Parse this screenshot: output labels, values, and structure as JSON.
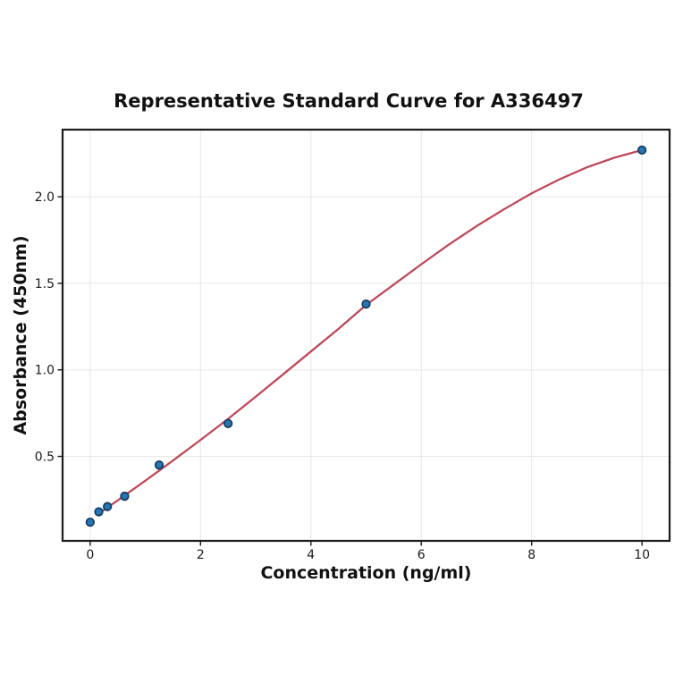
{
  "figure": {
    "background": "#ffffff"
  },
  "chart_data": {
    "type": "scatter",
    "title": "Representative Standard Curve for A336497",
    "xlabel": "Concentration (ng/ml)",
    "ylabel": "Absorbance (450nm)",
    "xlim": [
      -0.5,
      10.5
    ],
    "ylim": [
      0.012,
      2.388
    ],
    "xticks": [
      0,
      2,
      4,
      6,
      8,
      10
    ],
    "xtick_labels": [
      "0",
      "2",
      "4",
      "6",
      "8",
      "10"
    ],
    "yticks": [
      0.5,
      1.0,
      1.5,
      2.0
    ],
    "ytick_labels": [
      "0.5",
      "1.0",
      "1.5",
      "2.0"
    ],
    "grid": true,
    "legend": "none",
    "series": [
      {
        "name": "standard-points",
        "type": "scatter",
        "x": [
          0,
          0.156,
          0.3125,
          0.625,
          1.25,
          2.5,
          5,
          10
        ],
        "y": [
          0.12,
          0.18,
          0.21,
          0.27,
          0.45,
          0.69,
          1.38,
          2.27
        ]
      },
      {
        "name": "fit-curve",
        "type": "line",
        "x": [
          0.156,
          0.5,
          1.0,
          1.5,
          2.0,
          2.5,
          3.0,
          3.5,
          4.0,
          4.5,
          5.0,
          5.5,
          6.0,
          6.5,
          7.0,
          7.5,
          8.0,
          8.5,
          9.0,
          9.5,
          10.0
        ],
        "y": [
          0.17,
          0.246,
          0.36,
          0.476,
          0.595,
          0.717,
          0.845,
          0.975,
          1.106,
          1.237,
          1.375,
          1.492,
          1.61,
          1.724,
          1.83,
          1.928,
          2.02,
          2.1,
          2.17,
          2.226,
          2.27
        ]
      }
    ],
    "colors": {
      "curve": "#bc4a5a",
      "point_fill": "#2577b4",
      "point_edge": "#143a5e",
      "grid": "#e7e7e7",
      "spine": "#1b1b1b",
      "tick": "#1a1a1a",
      "text": "#111111",
      "background": "#ffffff"
    }
  }
}
